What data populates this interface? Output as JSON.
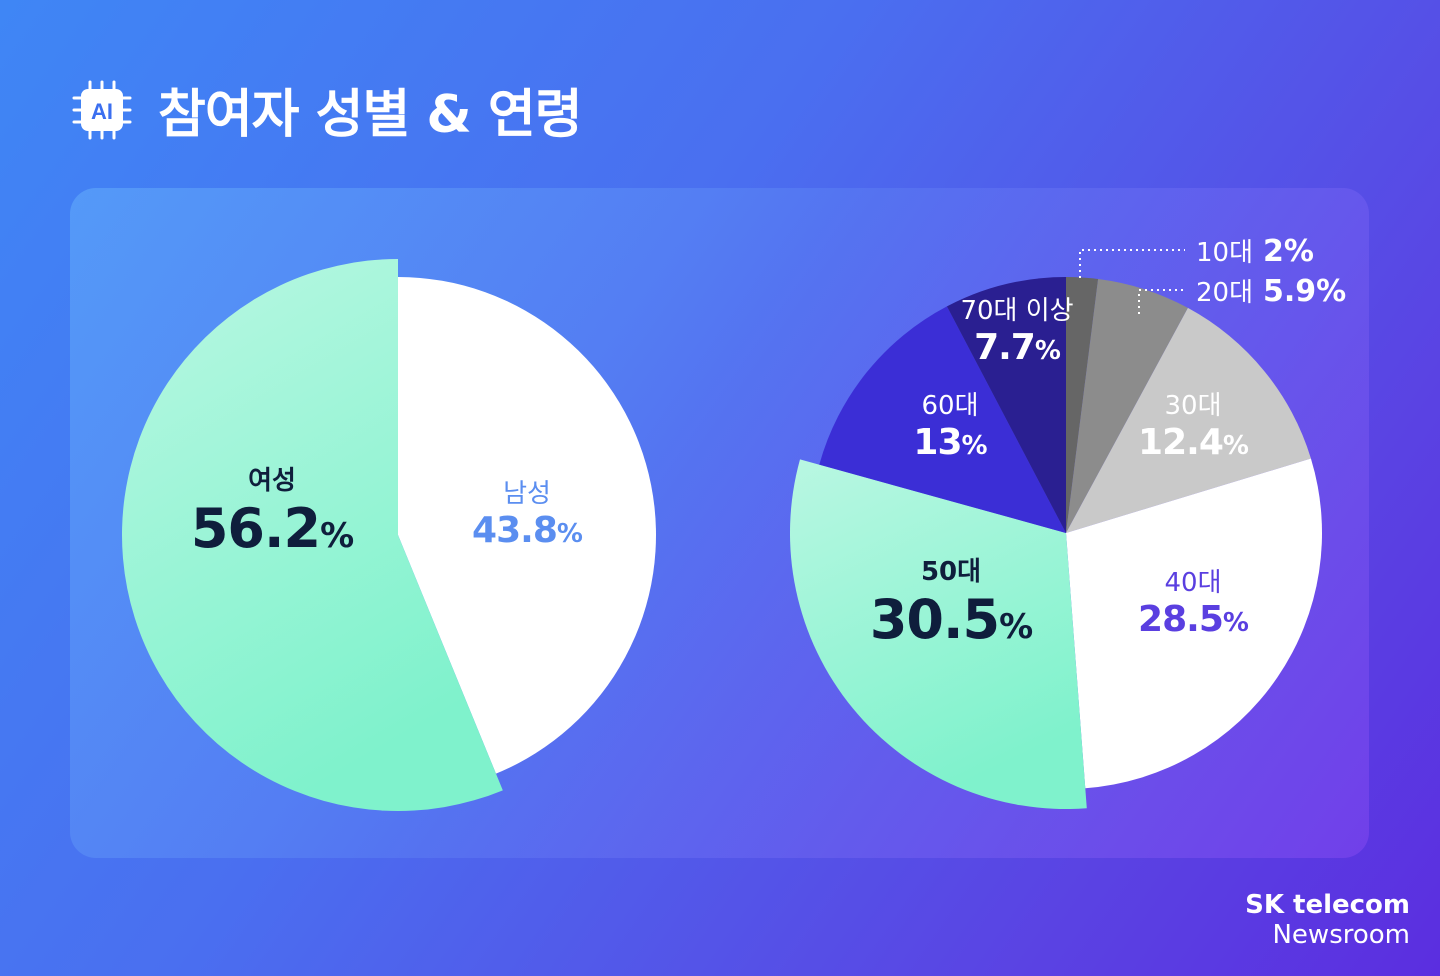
{
  "header": {
    "title": "참여자 성별 & 연령",
    "icon": "ai-chip-icon",
    "icon_text": "AI"
  },
  "colors": {
    "mint": "#7ff2cc",
    "white": "#ffffff",
    "gray_dark": "#666666",
    "gray_mid": "#8c8c8c",
    "gray_light": "#c9c9c9",
    "navy": "#2a1f91",
    "indigo": "#3b2ed6",
    "label_dark": "#0f1e3c",
    "label_blue": "#5b8ef0",
    "label_purple": "#5a3fe0"
  },
  "chart_data": [
    {
      "type": "pie",
      "slices": [
        {
          "label": "여성",
          "value": 56.2,
          "display": "56.2",
          "unit": "%"
        },
        {
          "label": "남성",
          "value": 43.8,
          "display": "43.8",
          "unit": "%"
        }
      ]
    },
    {
      "type": "pie",
      "slices": [
        {
          "label": "10대",
          "value": 2,
          "display": "2",
          "unit": "%"
        },
        {
          "label": "20대",
          "value": 5.9,
          "display": "5.9",
          "unit": "%"
        },
        {
          "label": "30대",
          "value": 12.4,
          "display": "12.4",
          "unit": "%"
        },
        {
          "label": "40대",
          "value": 28.5,
          "display": "28.5",
          "unit": "%"
        },
        {
          "label": "50대",
          "value": 30.5,
          "display": "30.5",
          "unit": "%"
        },
        {
          "label": "60대",
          "value": 13,
          "display": "13",
          "unit": "%"
        },
        {
          "label": "70대 이상",
          "value": 7.7,
          "display": "7.7",
          "unit": "%"
        }
      ]
    }
  ],
  "brand": {
    "line1": "SK telecom",
    "line2": "Newsroom"
  }
}
